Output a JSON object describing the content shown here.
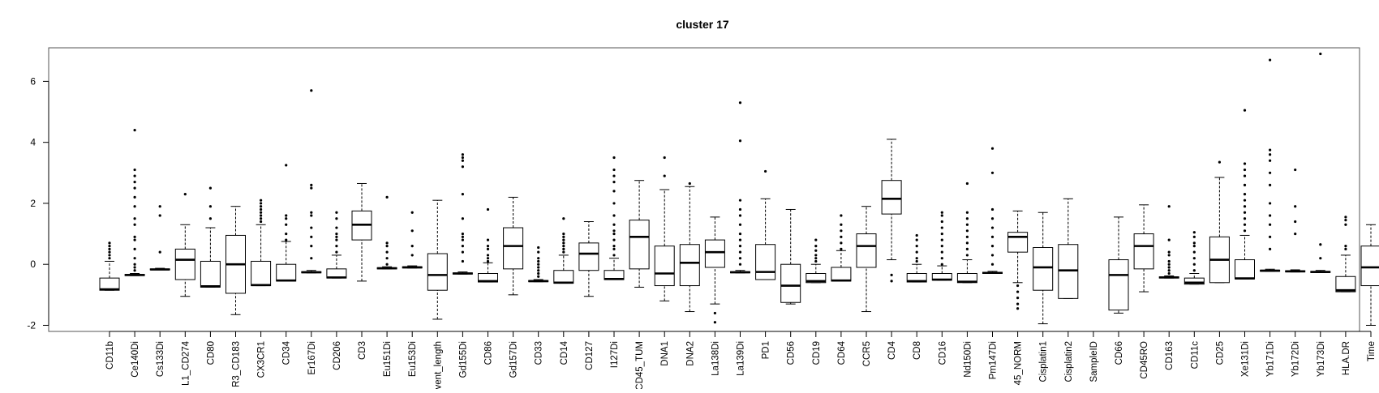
{
  "chart_data": {
    "type": "boxplot",
    "title": "cluster 17",
    "xlabel": "",
    "ylabel": "",
    "ylim": [
      -2.2,
      7.1
    ],
    "yticks": [
      -2,
      0,
      2,
      4,
      6
    ],
    "grid": false,
    "legend": "none",
    "box_color": "#ffffff",
    "line_color": "#000000",
    "categories": [
      "CD11b",
      "Ce140Di",
      "Cs133Di",
      "L1_CD274",
      "CD80",
      "R3_CD183",
      "CX3CR1",
      "CD34",
      "Er167Di",
      "CD206",
      "CD3",
      "Eu151Di",
      "Eu153Di",
      "vent_length",
      "Gd155Di",
      "CD86",
      "Gd157Di",
      "CD33",
      "CD14",
      "CD127",
      "I127Di",
      "CD45_TUM",
      "DNA1",
      "DNA2",
      "La138Di",
      "La139Di",
      "PD1",
      "CD56",
      "CD19",
      "CD64",
      "CCR5",
      "CD4",
      "CD8",
      "CD16",
      "Nd150Di",
      "Pm147Di",
      "45_NORM",
      "Cisplatin1",
      "Cisplatin2",
      "SampleID",
      "CD66",
      "CD45RO",
      "CD163",
      "CD11c",
      "CD25",
      "Xe131Di",
      "Yb171Di",
      "Yb172Di",
      "Yb173Di",
      "HLA.DR",
      "Time"
    ],
    "boxes": [
      {
        "name": "CD11b",
        "low": -0.85,
        "q1": -0.85,
        "median": -0.82,
        "q3": -0.45,
        "high": 0.1,
        "outliers": [
          0.2,
          0.3,
          0.4,
          0.5,
          0.6,
          0.7
        ]
      },
      {
        "name": "Ce140Di",
        "low": -0.37,
        "q1": -0.37,
        "median": -0.35,
        "q3": -0.33,
        "high": -0.3,
        "outliers": [
          -0.2,
          -0.1,
          0.0,
          0.2,
          0.5,
          0.8,
          0.9,
          1.3,
          1.5,
          1.9,
          2.2,
          2.5,
          2.7,
          2.9,
          3.1,
          4.4
        ]
      },
      {
        "name": "Cs133Di",
        "low": -0.18,
        "q1": -0.18,
        "median": -0.17,
        "q3": -0.15,
        "high": -0.13,
        "outliers": [
          0.4,
          1.6,
          1.9
        ]
      },
      {
        "name": "L1_CD274",
        "low": -1.05,
        "q1": -0.5,
        "median": 0.15,
        "q3": 0.5,
        "high": 1.3,
        "outliers": [
          2.3
        ]
      },
      {
        "name": "CD80",
        "low": -0.75,
        "q1": -0.75,
        "median": -0.72,
        "q3": 0.1,
        "high": 1.2,
        "outliers": [
          1.5,
          1.9,
          2.5
        ]
      },
      {
        "name": "R3_CD183",
        "low": -1.65,
        "q1": -0.95,
        "median": 0.0,
        "q3": 0.95,
        "high": 1.9,
        "outliers": []
      },
      {
        "name": "CX3CR1",
        "low": -0.7,
        "q1": -0.7,
        "median": -0.68,
        "q3": 0.1,
        "high": 1.3,
        "outliers": [
          1.4,
          1.5,
          1.6,
          1.7,
          1.8,
          1.9,
          2.0,
          2.1
        ]
      },
      {
        "name": "CD34",
        "low": -0.55,
        "q1": -0.55,
        "median": -0.53,
        "q3": 0.0,
        "high": 0.75,
        "outliers": [
          0.8,
          1.0,
          1.3,
          1.5,
          1.6,
          3.25
        ]
      },
      {
        "name": "Er167Di",
        "low": -0.28,
        "q1": -0.28,
        "median": -0.26,
        "q3": -0.24,
        "high": -0.2,
        "outliers": [
          0.2,
          0.6,
          0.9,
          1.2,
          1.6,
          1.7,
          2.5,
          2.6,
          5.7
        ]
      },
      {
        "name": "CD206",
        "low": -0.45,
        "q1": -0.45,
        "median": -0.43,
        "q3": -0.15,
        "high": 0.3,
        "outliers": [
          0.4,
          0.6,
          0.8,
          0.9,
          1.0,
          1.2,
          1.5,
          1.7
        ]
      },
      {
        "name": "CD3",
        "low": -0.55,
        "q1": 0.8,
        "median": 1.3,
        "q3": 1.75,
        "high": 2.65,
        "outliers": []
      },
      {
        "name": "Eu151Di",
        "low": -0.15,
        "q1": -0.15,
        "median": -0.13,
        "q3": -0.11,
        "high": -0.08,
        "outliers": [
          0.0,
          0.2,
          0.4,
          0.6,
          0.7,
          2.2
        ]
      },
      {
        "name": "Eu153Di",
        "low": -0.12,
        "q1": -0.12,
        "median": -0.1,
        "q3": -0.08,
        "high": -0.05,
        "outliers": [
          0.3,
          0.6,
          1.1,
          1.7
        ]
      },
      {
        "name": "vent_length",
        "low": -1.8,
        "q1": -0.85,
        "median": -0.35,
        "q3": 0.35,
        "high": 2.1,
        "outliers": []
      },
      {
        "name": "Gd155Di",
        "low": -0.32,
        "q1": -0.32,
        "median": -0.3,
        "q3": -0.28,
        "high": -0.25,
        "outliers": [
          0.1,
          0.4,
          0.6,
          0.8,
          0.9,
          1.0,
          1.5,
          2.3,
          3.2,
          3.4,
          3.5,
          3.6
        ]
      },
      {
        "name": "CD86",
        "low": -0.58,
        "q1": -0.58,
        "median": -0.55,
        "q3": -0.3,
        "high": 0.05,
        "outliers": [
          0.1,
          0.2,
          0.3,
          0.5,
          0.6,
          0.8,
          1.8
        ]
      },
      {
        "name": "Gd157Di",
        "low": -1.0,
        "q1": -0.15,
        "median": 0.6,
        "q3": 1.2,
        "high": 2.2,
        "outliers": []
      },
      {
        "name": "CD33",
        "low": -0.57,
        "q1": -0.57,
        "median": -0.55,
        "q3": -0.53,
        "high": -0.5,
        "outliers": [
          -0.4,
          -0.3,
          -0.2,
          -0.1,
          0.0,
          0.1,
          0.2,
          0.4,
          0.55
        ]
      },
      {
        "name": "CD14",
        "low": -0.62,
        "q1": -0.62,
        "median": -0.6,
        "q3": -0.2,
        "high": 0.3,
        "outliers": [
          0.4,
          0.5,
          0.6,
          0.7,
          0.8,
          0.9,
          1.0,
          1.5
        ]
      },
      {
        "name": "CD127",
        "low": -1.05,
        "q1": -0.2,
        "median": 0.35,
        "q3": 0.7,
        "high": 1.4,
        "outliers": []
      },
      {
        "name": "I127Di",
        "low": -0.5,
        "q1": -0.5,
        "median": -0.48,
        "q3": -0.2,
        "high": 0.2,
        "outliers": [
          0.3,
          0.5,
          0.6,
          0.8,
          1.0,
          1.1,
          1.3,
          1.6,
          2.0,
          2.4,
          2.7,
          2.9,
          3.1,
          3.5
        ]
      },
      {
        "name": "CD45_TUM",
        "low": -0.75,
        "q1": -0.15,
        "median": 0.9,
        "q3": 1.45,
        "high": 2.75,
        "outliers": []
      },
      {
        "name": "DNA1",
        "low": -1.2,
        "q1": -0.7,
        "median": -0.3,
        "q3": 0.6,
        "high": 2.45,
        "outliers": [
          2.9,
          3.5
        ]
      },
      {
        "name": "DNA2",
        "low": -1.55,
        "q1": -0.7,
        "median": 0.05,
        "q3": 0.65,
        "high": 2.55,
        "outliers": [
          2.65
        ]
      },
      {
        "name": "La138Di",
        "low": -1.3,
        "q1": -0.1,
        "median": 0.4,
        "q3": 0.8,
        "high": 1.55,
        "outliers": [
          -1.6,
          -1.9
        ]
      },
      {
        "name": "La139Di",
        "low": -0.28,
        "q1": -0.28,
        "median": -0.26,
        "q3": -0.24,
        "high": -0.2,
        "outliers": [
          0.0,
          0.2,
          0.4,
          0.6,
          0.8,
          1.0,
          1.3,
          1.6,
          1.8,
          2.1,
          4.05,
          5.3
        ]
      },
      {
        "name": "PD1",
        "low": -0.5,
        "q1": -0.5,
        "median": -0.25,
        "q3": 0.65,
        "high": 2.15,
        "outliers": [
          3.05
        ]
      },
      {
        "name": "CD56",
        "low": -1.3,
        "q1": -1.25,
        "median": -0.7,
        "q3": 0.0,
        "high": 1.8,
        "outliers": []
      },
      {
        "name": "CD19",
        "low": -0.6,
        "q1": -0.6,
        "median": -0.55,
        "q3": -0.3,
        "high": 0.0,
        "outliers": [
          0.1,
          0.2,
          0.3,
          0.45,
          0.6,
          0.8
        ]
      },
      {
        "name": "CD64",
        "low": -0.55,
        "q1": -0.55,
        "median": -0.53,
        "q3": -0.1,
        "high": 0.45,
        "outliers": [
          0.5,
          0.7,
          0.9,
          1.1,
          1.3,
          1.6
        ]
      },
      {
        "name": "CCR5",
        "low": -1.55,
        "q1": -0.1,
        "median": 0.6,
        "q3": 1.0,
        "high": 1.9,
        "outliers": []
      },
      {
        "name": "CD4",
        "low": 0.15,
        "q1": 1.65,
        "median": 2.15,
        "q3": 2.75,
        "high": 4.1,
        "outliers": [
          -0.35,
          -0.55
        ]
      },
      {
        "name": "CD8",
        "low": -0.58,
        "q1": -0.58,
        "median": -0.55,
        "q3": -0.3,
        "high": 0.0,
        "outliers": [
          0.1,
          0.2,
          0.4,
          0.6,
          0.8,
          0.95
        ]
      },
      {
        "name": "CD16",
        "low": -0.52,
        "q1": -0.52,
        "median": -0.5,
        "q3": -0.3,
        "high": -0.05,
        "outliers": [
          0.0,
          0.2,
          0.4,
          0.6,
          0.8,
          1.0,
          1.2,
          1.4,
          1.6,
          1.7
        ]
      },
      {
        "name": "Nd150Di",
        "low": -0.6,
        "q1": -0.6,
        "median": -0.57,
        "q3": -0.3,
        "high": 0.15,
        "outliers": [
          0.3,
          0.5,
          0.7,
          0.9,
          1.1,
          1.3,
          1.5,
          1.7,
          2.65
        ]
      },
      {
        "name": "Pm147Di",
        "low": -0.3,
        "q1": -0.3,
        "median": -0.28,
        "q3": -0.26,
        "high": -0.23,
        "outliers": [
          0.0,
          0.3,
          0.6,
          0.9,
          1.2,
          1.5,
          1.8,
          3.0,
          3.8
        ]
      },
      {
        "name": "45_NORM",
        "low": -0.6,
        "q1": 0.4,
        "median": 0.9,
        "q3": 1.05,
        "high": 1.75,
        "outliers": [
          -0.7,
          -0.9,
          -1.1,
          -1.3,
          -1.45
        ]
      },
      {
        "name": "Cisplatin1",
        "low": -1.95,
        "q1": -0.85,
        "median": -0.1,
        "q3": 0.55,
        "high": 1.7,
        "outliers": []
      },
      {
        "name": "Cisplatin2",
        "low": -1.12,
        "q1": -1.12,
        "median": -0.2,
        "q3": 0.65,
        "high": 2.15,
        "outliers": []
      },
      {
        "name": "SampleID",
        "low": null,
        "q1": null,
        "median": null,
        "q3": null,
        "high": null,
        "outliers": []
      },
      {
        "name": "CD66",
        "low": -1.6,
        "q1": -1.5,
        "median": -0.35,
        "q3": 0.15,
        "high": 1.55,
        "outliers": []
      },
      {
        "name": "CD45RO",
        "low": -0.9,
        "q1": -0.15,
        "median": 0.6,
        "q3": 1.0,
        "high": 1.95,
        "outliers": []
      },
      {
        "name": "CD163",
        "low": -0.45,
        "q1": -0.45,
        "median": -0.43,
        "q3": -0.41,
        "high": -0.38,
        "outliers": [
          -0.3,
          -0.2,
          -0.1,
          0.0,
          0.1,
          0.3,
          0.4,
          0.8,
          1.9
        ]
      },
      {
        "name": "CD11c",
        "low": -0.65,
        "q1": -0.65,
        "median": -0.6,
        "q3": -0.45,
        "high": -0.3,
        "outliers": [
          -0.2,
          0.0,
          0.2,
          0.4,
          0.6,
          0.7,
          0.9,
          1.05
        ]
      },
      {
        "name": "CD25",
        "low": -0.6,
        "q1": -0.6,
        "median": 0.15,
        "q3": 0.9,
        "high": 2.85,
        "outliers": [
          3.35
        ]
      },
      {
        "name": "Xe131Di",
        "low": -0.48,
        "q1": -0.48,
        "median": -0.46,
        "q3": 0.15,
        "high": 0.95,
        "outliers": [
          1.1,
          1.3,
          1.5,
          1.7,
          1.9,
          2.1,
          2.3,
          2.6,
          2.9,
          3.1,
          3.3,
          5.05
        ]
      },
      {
        "name": "Yb171Di",
        "low": -0.23,
        "q1": -0.23,
        "median": -0.21,
        "q3": -0.19,
        "high": -0.16,
        "outliers": [
          0.5,
          0.9,
          1.3,
          1.6,
          2.0,
          2.6,
          3.0,
          3.4,
          3.6,
          3.75,
          6.7
        ]
      },
      {
        "name": "Yb172Di",
        "low": -0.25,
        "q1": -0.25,
        "median": -0.23,
        "q3": -0.21,
        "high": -0.18,
        "outliers": [
          1.0,
          1.4,
          1.9,
          3.1
        ]
      },
      {
        "name": "Yb173Di",
        "low": -0.27,
        "q1": -0.27,
        "median": -0.25,
        "q3": -0.23,
        "high": -0.2,
        "outliers": [
          0.2,
          0.65,
          6.9
        ]
      },
      {
        "name": "HLA.DR",
        "low": -0.9,
        "q1": -0.9,
        "median": -0.85,
        "q3": -0.4,
        "high": 0.3,
        "outliers": [
          0.5,
          0.6,
          1.3,
          1.45,
          1.55
        ]
      },
      {
        "name": "Time",
        "low": -2.0,
        "q1": -0.7,
        "median": -0.1,
        "q3": 0.6,
        "high": 1.3,
        "outliers": []
      }
    ]
  }
}
